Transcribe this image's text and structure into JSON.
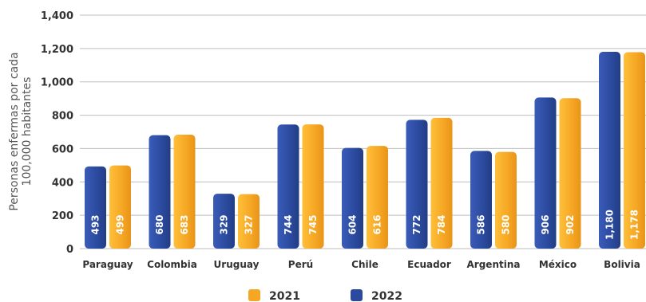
{
  "chart_data": {
    "type": "bar",
    "ylabel_lines": [
      "Personas enfermas por cada",
      "100,000 habitantes"
    ],
    "ylim": [
      0,
      1400
    ],
    "yticks": [
      0,
      200,
      400,
      600,
      800,
      "1,000",
      "1,200",
      "1,400"
    ],
    "ytick_values": [
      0,
      200,
      400,
      600,
      800,
      1000,
      1200,
      1400
    ],
    "categories": [
      "Paraguay",
      "Colombia",
      "Uruguay",
      "Perú",
      "Chile",
      "Ecuador",
      "Argentina",
      "México",
      "Bolivia"
    ],
    "series": [
      {
        "name": "2022",
        "color": "#2b4a9e",
        "values": [
          493,
          680,
          329,
          744,
          604,
          772,
          586,
          906,
          1180
        ],
        "labels": [
          "493",
          "680",
          "329",
          "744",
          "604",
          "772",
          "586",
          "906",
          "1,180"
        ]
      },
      {
        "name": "2021",
        "color": "#f5a623",
        "values": [
          499,
          683,
          327,
          745,
          616,
          784,
          580,
          902,
          1178
        ],
        "labels": [
          "499",
          "683",
          "327",
          "745",
          "616",
          "784",
          "580",
          "902",
          "1,178"
        ]
      }
    ],
    "grid": true,
    "legend": {
      "placement": "bottom-center",
      "items": [
        {
          "name": "2021",
          "color": "#f5a623"
        },
        {
          "name": "2022",
          "color": "#2b4a9e"
        }
      ]
    }
  }
}
